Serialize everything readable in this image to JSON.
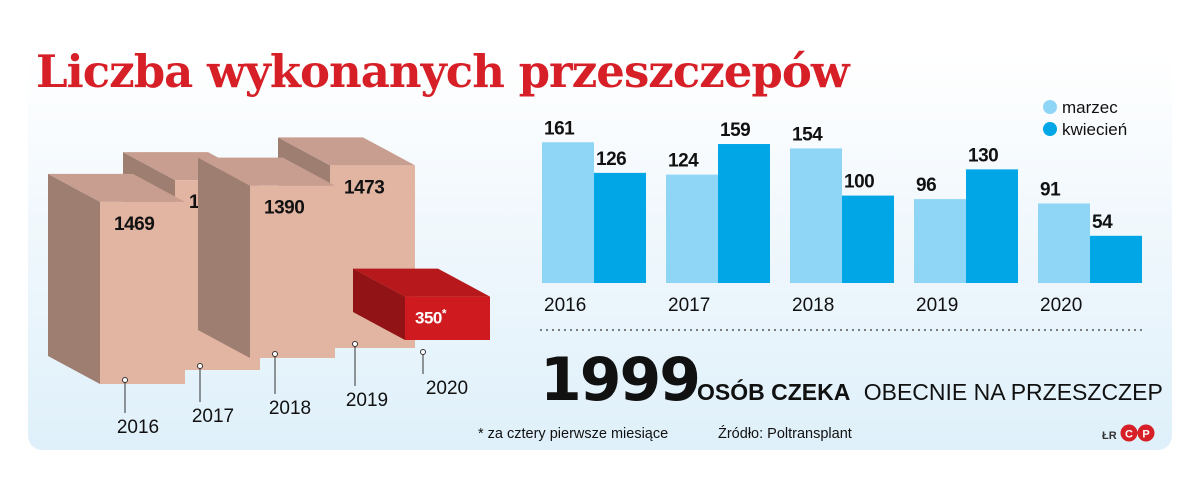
{
  "title": "Liczba wykonanych przeszczepów",
  "chart_data": [
    {
      "type": "bar",
      "categories": [
        "2016",
        "2017",
        "2018",
        "2019",
        "2020"
      ],
      "values": [
        1469,
        1531,
        1390,
        1473,
        350
      ],
      "value_labels": [
        "1469",
        "1531",
        "1390",
        "1473",
        "350"
      ],
      "asterisk": "*",
      "colors": {
        "bar": "#e2b4a2",
        "highlight": "#cf1b20"
      }
    },
    {
      "type": "bar",
      "categories": [
        "2016",
        "2017",
        "2018",
        "2019",
        "2020"
      ],
      "series": [
        {
          "name": "marzec",
          "values": [
            161,
            124,
            154,
            96,
            91
          ],
          "color": "#8fd6f6"
        },
        {
          "name": "kwiecień",
          "values": [
            126,
            159,
            100,
            130,
            54
          ],
          "color": "#00a6e6"
        }
      ],
      "legend": "top-right"
    }
  ],
  "waiting": {
    "number": "1999",
    "bold_text": "OSÓB CZEKA",
    "text": "OBECNIE NA PRZESZCZEP"
  },
  "footnote": "* za cztery pierwsze miesiące",
  "source": "Źródło: Poltransplant",
  "credit": "ŁR",
  "logo": "CP"
}
